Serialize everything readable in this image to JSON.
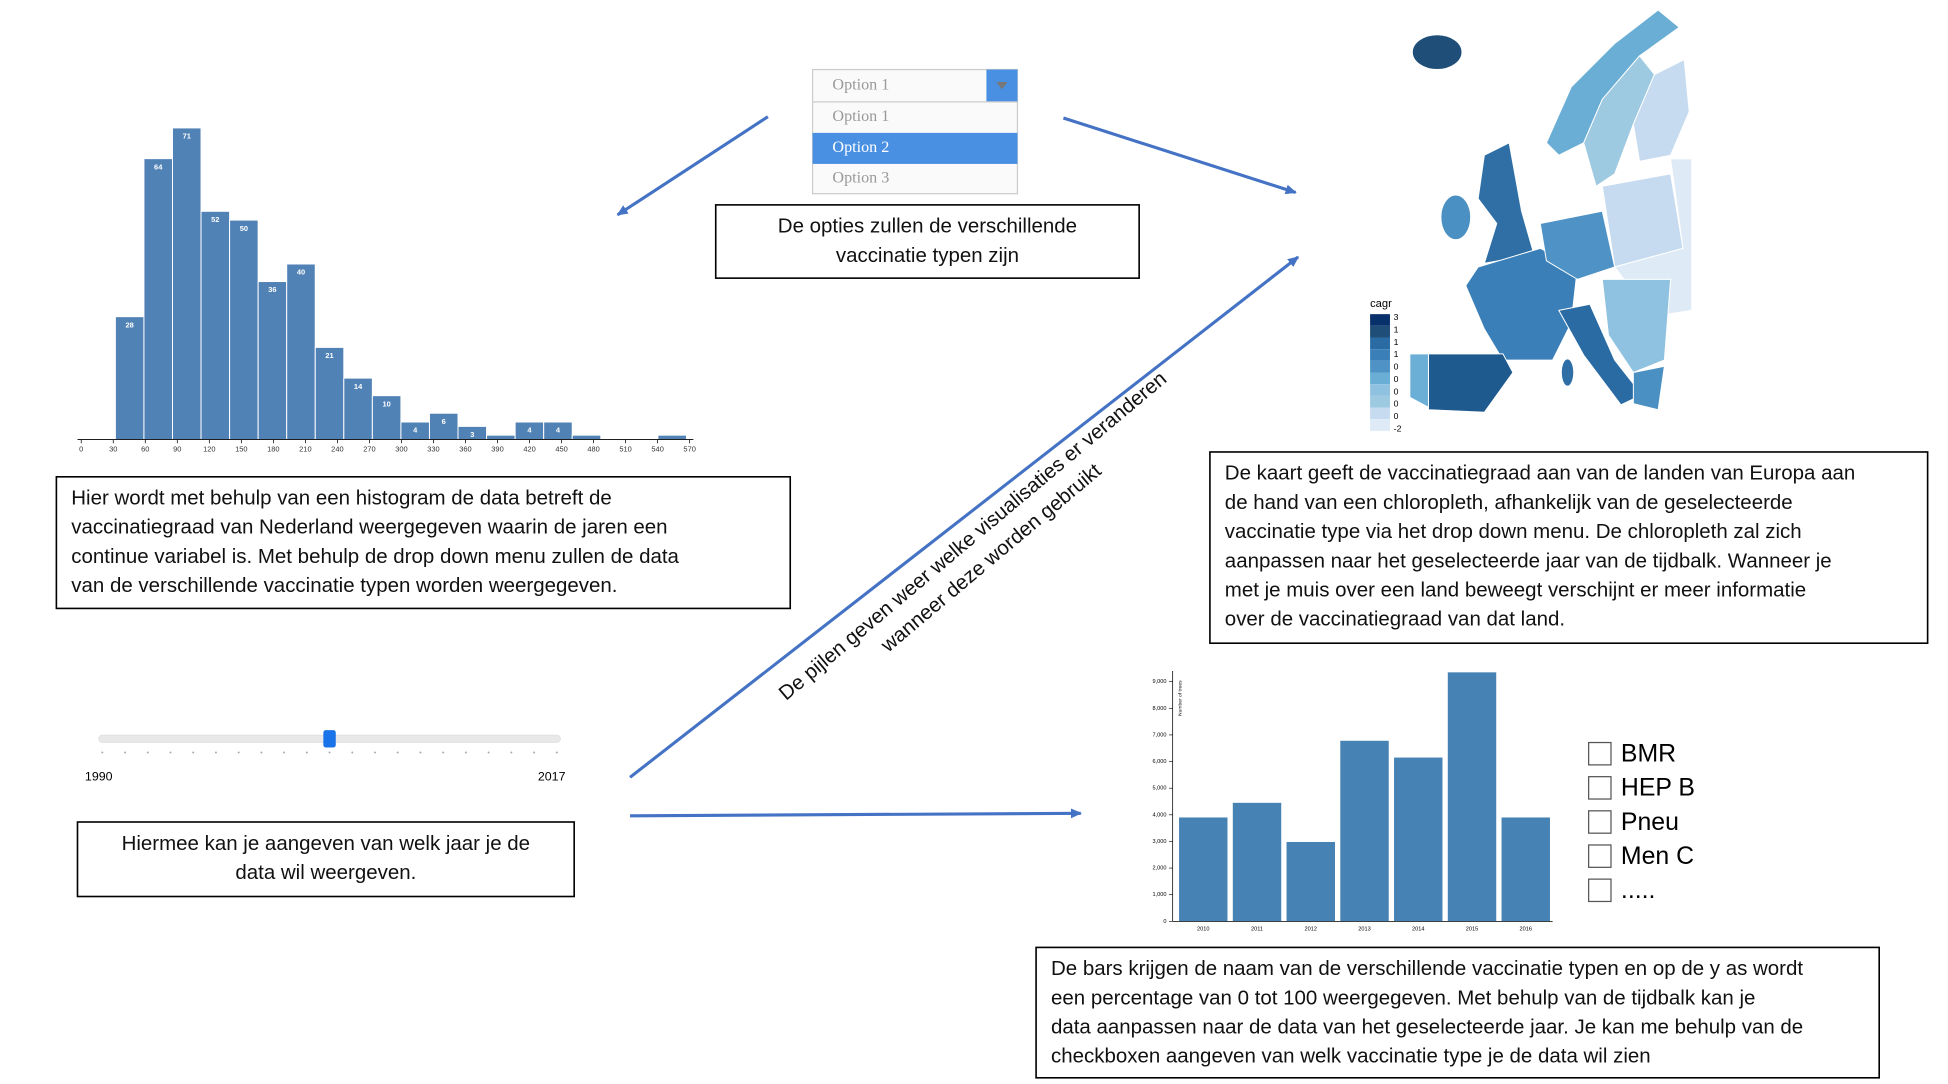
{
  "dropdown": {
    "selected": "Option 1",
    "options": [
      "Option 1",
      "Option 2",
      "Option 3"
    ]
  },
  "notes": [
    {
      "lines": [
        "De opties zullen de verschillende",
        "vaccinatie typen zijn"
      ]
    },
    {
      "lines": [
        "Hier wordt met behulp van een histogram de data betreft de",
        "vaccinatiegraad van Nederland weergegeven waarin de jaren een",
        "continue variabel is. Met behulp de drop down menu zullen de data",
        "van de verschillende vaccinatie typen worden weergegeven."
      ]
    },
    {
      "lines": [
        "De kaart geeft de vaccinatiegraad aan van de landen van Europa aan",
        "de hand van een chloropleth, afhankelijk van de geselecteerde",
        "vaccinatie type via het drop down menu. De chloropleth zal zich",
        "aanpassen naar het geselecteerde jaar van de tijdbalk. Wanneer je",
        "met je muis over een land beweegt verschijnt er meer informatie",
        "over de vaccinatiegraad van dat land."
      ]
    },
    {
      "lines": [
        "Hiermee kan je aangeven van welk jaar je de",
        "data wil weergeven."
      ]
    },
    {
      "lines": [
        "De bars krijgen de naam van de verschillende vaccinatie typen en op de y as wordt",
        "een percentage van 0 tot 100 weergegeven. Met behulp van de tijdbalk kan je",
        "data aanpassen naar de data van het geselecteerde jaar. Je kan me behulp van de",
        "checkboxen aangeven van welk vaccinatie type je de data wil zien"
      ]
    }
  ],
  "annotation": {
    "lines": [
      "De pijlen geven weer welke visualisaties er veranderen",
      "wanneer deze worden gebruikt"
    ]
  },
  "slider": {
    "min_label": "1990",
    "max_label": "2017"
  },
  "checkboxes": [
    "BMR",
    "HEP B",
    "Pneu",
    "Men C",
    "....."
  ],
  "map": {
    "legend_title": "cagr",
    "legend_labels": [
      3,
      1,
      1,
      1,
      0,
      0,
      0,
      0,
      0,
      -2
    ]
  },
  "chart_data": [
    {
      "type": "histogram",
      "bins": [
        32,
        58.75,
        85.5,
        112.25,
        139,
        165.75,
        192.5,
        219.25,
        246,
        272.75,
        299.5,
        326.25,
        353,
        379.75,
        406.5,
        433.25,
        460,
        486.75,
        513.5,
        540.25,
        567
      ],
      "values": [
        28,
        64,
        71,
        52,
        50,
        36,
        40,
        21,
        14,
        10,
        4,
        6,
        3,
        1,
        4,
        4,
        1,
        0,
        0,
        1
      ],
      "xlim": [
        0,
        570
      ],
      "xticks": [
        0,
        30,
        60,
        90,
        120,
        150,
        180,
        210,
        240,
        270,
        300,
        330,
        360,
        390,
        420,
        450,
        480,
        510,
        540,
        570
      ],
      "color": "#5182b6"
    },
    {
      "type": "bar",
      "categories": [
        "2010",
        "2011",
        "2012",
        "2013",
        "2014",
        "2015",
        "2016"
      ],
      "values": [
        3900,
        4450,
        2980,
        6780,
        6150,
        9350,
        3900
      ],
      "ylabel": "Number of trees",
      "ylim": [
        0,
        9400
      ],
      "yticks": [
        0,
        {
          "value": 1000,
          "label": "1,000"
        },
        {
          "value": 2000,
          "label": "2,000"
        },
        {
          "value": 3000,
          "label": "3,000"
        },
        {
          "value": 4000,
          "label": "4,000"
        },
        {
          "value": 5000,
          "label": "5,000"
        },
        {
          "value": 6000,
          "label": "6,000"
        },
        {
          "value": 7000,
          "label": "7,000"
        },
        {
          "value": 8000,
          "label": "8,000"
        },
        {
          "value": 9000,
          "label": "9,000"
        }
      ],
      "color": "#4682b4"
    }
  ]
}
